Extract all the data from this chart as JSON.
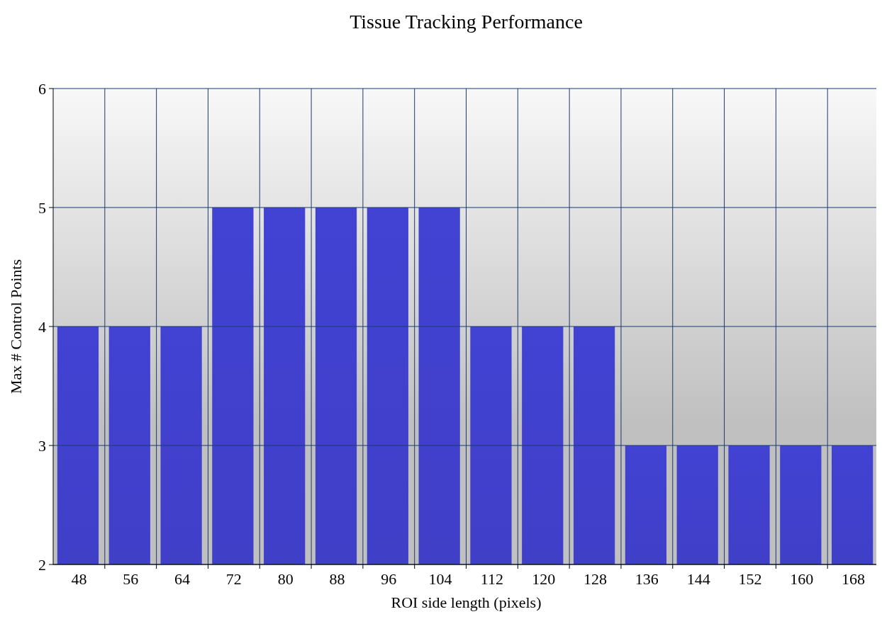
{
  "chart_data": {
    "type": "bar",
    "title": "Tissue Tracking Performance",
    "xlabel": "ROI side length (pixels)",
    "ylabel": "Max # Control Points",
    "categories": [
      "48",
      "56",
      "64",
      "72",
      "80",
      "88",
      "96",
      "104",
      "112",
      "120",
      "128",
      "136",
      "144",
      "152",
      "160",
      "168"
    ],
    "values": [
      4,
      4,
      4,
      5,
      5,
      5,
      5,
      5,
      4,
      4,
      4,
      3,
      3,
      3,
      3,
      3
    ],
    "color": "#3f3fc8",
    "ylim": [
      2,
      6
    ],
    "yticks": [
      2,
      3,
      4,
      5,
      6
    ],
    "grid": true
  }
}
